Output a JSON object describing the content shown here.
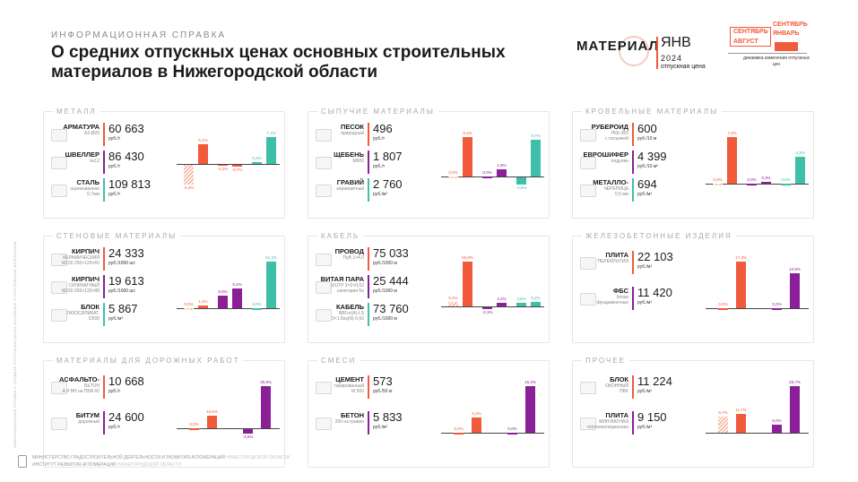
{
  "header": {
    "kicker": "ИНФОРМАЦИОННАЯ СПРАВКА",
    "title": "О средних отпускных ценах основных строительных материалов в Нижегородской области",
    "side_text": "ИНФОРМАЦИОННАЯ СПРАВКА О СРЕДНИХ ОТПУСКНЫХ ЦЕНАХ ОСНОВНЫХ СТРОИТЕЛЬНЫХ МАТЕРИАЛОВ"
  },
  "legend": {
    "material": "МАТЕРИАЛ",
    "month": "ЯНВ",
    "year": "2024",
    "price_caption": "отпускная цена",
    "sep_aug": "СЕНТЯБРЬ",
    "aug": "АВГУСТ",
    "sep_jan_1": "СЕНТЯБРЬ",
    "sep_jan_2": "ЯНВАРЬ",
    "dynamics_caption": "динамика изменения отпускных цен"
  },
  "colors": {
    "orange": "#f15a3a",
    "teal": "#3dbfa8",
    "purple": "#8b1f98",
    "hatch": "#f4b79f",
    "text": "#1a1a1a"
  },
  "cards": [
    {
      "title": "МЕТАЛЛ",
      "items": [
        {
          "name": "АРМАТУРА",
          "sub": "А3 Ø20",
          "sub2": "",
          "price": "60 663",
          "unit": "руб./т"
        },
        {
          "name": "ШВЕЛЛЕР",
          "sub": "№12",
          "sub2": "",
          "price": "86 430",
          "unit": "руб./т"
        },
        {
          "name": "СТАЛЬ",
          "sub": "оцинкованная",
          "sub2": "0,7мм",
          "price": "109 813",
          "unit": "руб./т"
        }
      ],
      "bars": [
        {
          "label": "-5,4%",
          "value": -5.4,
          "color": "hatch"
        },
        {
          "label": "5,1%",
          "value": 5.1,
          "color": "orange"
        },
        {
          "label": "-0,3%",
          "value": -0.3,
          "color": "orange"
        },
        {
          "label": "-0,7%",
          "value": -0.7,
          "color": "orange"
        },
        {
          "label": "0,2%",
          "value": 0.2,
          "color": "teal"
        },
        {
          "label": "7,1%",
          "value": 7.1,
          "color": "teal"
        }
      ]
    },
    {
      "title": "СЫПУЧИЕ МАТЕРИАЛЫ",
      "items": [
        {
          "name": "ПЕСОК",
          "sub": "природный",
          "sub2": "",
          "price": "496",
          "unit": "руб./т"
        },
        {
          "name": "ЩЕБЕНЬ",
          "sub": "М600",
          "sub2": "",
          "price": "1 807",
          "unit": "руб./т"
        },
        {
          "name": "ГРАВИЙ",
          "sub": "керамзитный",
          "sub2": "",
          "price": "2 760",
          "unit": "руб./м³"
        }
      ],
      "bars": [
        {
          "label": "0,0%",
          "value": 0.0,
          "color": "hatch"
        },
        {
          "label": "9,4%",
          "value": 9.4,
          "color": "orange"
        },
        {
          "label": "0,0%",
          "value": 0.0,
          "color": "purple"
        },
        {
          "label": "1,8%",
          "value": 1.8,
          "color": "purple"
        },
        {
          "label": "-1,6%",
          "value": -1.6,
          "color": "teal"
        },
        {
          "label": "8,7%",
          "value": 8.7,
          "color": "teal"
        }
      ]
    },
    {
      "title": "КРОВЕЛЬНЫЕ МАТЕРИАЛЫ",
      "items": [
        {
          "name": "РУБЕРОИД",
          "sub": "РКК-350",
          "sub2": "с посыпкой",
          "price": "600",
          "unit": "руб./10 м"
        },
        {
          "name": "ЕВРОШИФЕР",
          "sub": "ондулин",
          "sub2": "",
          "price": "4 399",
          "unit": "руб./10 м²"
        },
        {
          "name": "МЕТАЛЛО-",
          "sub": "ЧЕРЕПИЦА",
          "sub2": "0,5 мм",
          "price": "694",
          "unit": "руб./м²"
        }
      ],
      "bars": [
        {
          "label": "0,0%",
          "value": 0.0,
          "color": "hatch"
        },
        {
          "label": "7,5%",
          "value": 7.5,
          "color": "orange"
        },
        {
          "label": "0,0%",
          "value": 0.0,
          "color": "purple"
        },
        {
          "label": "0,3%",
          "value": 0.3,
          "color": "purple"
        },
        {
          "label": "0,0%",
          "value": 0.0,
          "color": "teal"
        },
        {
          "label": "4,3%",
          "value": 4.3,
          "color": "teal"
        }
      ]
    },
    {
      "title": "СТЕНОВЫЕ МАТЕРИАЛЫ",
      "items": [
        {
          "name": "КИРПИЧ",
          "sub": "КЕРАМИЧЕСКИЙ",
          "sub2": "М150 250×120×65",
          "price": "24 333",
          "unit": "руб./1000 шт."
        },
        {
          "name": "КИРПИЧ",
          "sub": "СИЛИКАТНЫЙ",
          "sub2": "М150 250×120×88",
          "price": "19 613",
          "unit": "руб./1000 шт."
        },
        {
          "name": "БЛОК",
          "sub": "ГАЗОСИЛИКАТ.",
          "sub2": "D500",
          "price": "5 867",
          "unit": "руб./м³"
        }
      ],
      "bars": [
        {
          "label": "0,0%",
          "value": 0.0,
          "color": "hatch"
        },
        {
          "label": "1,4%",
          "value": 1.4,
          "color": "orange"
        },
        {
          "label": "5,9%",
          "value": 5.9,
          "color": "purple"
        },
        {
          "label": "9,2%",
          "value": 9.2,
          "color": "purple"
        },
        {
          "label": "0,0%",
          "value": 0.0,
          "color": "teal"
        },
        {
          "label": "21,3%",
          "value": 21.3,
          "color": "teal"
        }
      ]
    },
    {
      "title": "КАБЕЛЬ",
      "items": [
        {
          "name": "ПРОВОД",
          "sub": "ПуВ 1×4,0",
          "sub2": "",
          "price": "75 033",
          "unit": "руб./1000 м"
        },
        {
          "name": "ВИТАЯ ПАРА",
          "sub": "U/UTP 2×2×0,52",
          "sub2": "категория 5е",
          "price": "25 444",
          "unit": "руб./1000 м"
        },
        {
          "name": "КАБЕЛЬ",
          "sub": "ВВГнг(А)-LS",
          "sub2": "3×1,5ок(N)-0,66",
          "price": "73 760",
          "unit": "руб./1000 м"
        }
      ],
      "bars": [
        {
          "label": "6,1%",
          "value": 6.1,
          "color": "hatch"
        },
        {
          "label": "55,8%",
          "value": 55.8,
          "color": "orange"
        },
        {
          "label": "-2,1%",
          "value": -2.1,
          "color": "purple"
        },
        {
          "label": "4,2%",
          "value": 4.2,
          "color": "purple"
        },
        {
          "label": "4,5%",
          "value": 4.5,
          "color": "teal"
        },
        {
          "label": "5,2%",
          "value": 5.2,
          "color": "teal"
        }
      ]
    },
    {
      "title": "ЖЕЛЕЗОБЕТОННЫЕ ИЗДЕЛИЯ",
      "items": [
        {
          "name": "ПЛИТА",
          "sub": "ПЕРЕКРЫТИЯ",
          "sub2": "",
          "price": "22 103",
          "unit": "руб./м³"
        },
        {
          "name": "ФБС",
          "sub": "блоки",
          "sub2": "фундаментные",
          "price": "11 420",
          "unit": "руб./м³"
        }
      ],
      "bars": [
        {
          "label": "0,0%",
          "value": 0.0,
          "color": "orange"
        },
        {
          "label": "17,3%",
          "value": 17.3,
          "color": "orange"
        },
        {
          "label": "0,0%",
          "value": 0.0,
          "color": "purple"
        },
        {
          "label": "12,9%",
          "value": 12.9,
          "color": "purple"
        }
      ]
    },
    {
      "title": "МАТЕРИАЛЫ ДЛЯ ДОРОЖНЫХ РАБОТ",
      "items": [
        {
          "name": "АСФАЛЬТО-",
          "sub": "БЕТОН",
          "sub2": "А II ВН на ПБВ 60",
          "price": "10 668",
          "unit": "руб./т"
        },
        {
          "name": "БИТУМ",
          "sub": "дорожный",
          "sub2": "",
          "price": "24 600",
          "unit": "руб./т"
        }
      ],
      "bars": [
        {
          "label": "0,0%",
          "value": 0.0,
          "color": "orange"
        },
        {
          "label": "10,6%",
          "value": 10.6,
          "color": "orange"
        },
        {
          "label": "-3,6%",
          "value": -3.6,
          "color": "purple"
        },
        {
          "label": "35,9%",
          "value": 35.9,
          "color": "purple"
        }
      ]
    },
    {
      "title": "СМЕСИ",
      "items": [
        {
          "name": "ЦЕМЕНТ",
          "sub": "тарированный",
          "sub2": "М 500",
          "price": "573",
          "unit": "руб./50 кг"
        },
        {
          "name": "БЕТОН",
          "sub": "200 на гравии",
          "sub2": "",
          "price": "5 833",
          "unit": "руб./м³"
        }
      ],
      "bars": [
        {
          "label": "0,0%",
          "value": 0.0,
          "color": "orange"
        },
        {
          "label": "5,2%",
          "value": 5.2,
          "color": "orange"
        },
        {
          "label": "0,0%",
          "value": 0.0,
          "color": "purple"
        },
        {
          "label": "16,3%",
          "value": 16.3,
          "color": "purple"
        }
      ]
    },
    {
      "title": "ПРОЧЕЕ",
      "items": [
        {
          "name": "БЛОК",
          "sub": "ОКОННЫЙ",
          "sub2": "ПВХ",
          "price": "11 224",
          "unit": "руб./м²"
        },
        {
          "name": "ПЛИТА",
          "sub": "МИН-ВАТНАЯ",
          "sub2": "теплоизоляционная",
          "price": "9 150",
          "unit": "руб./м³"
        }
      ],
      "bars": [
        {
          "label": "9,7%",
          "value": 9.7,
          "color": "hatch"
        },
        {
          "label": "11,7%",
          "value": 11.7,
          "color": "orange"
        },
        {
          "label": "5,0%",
          "value": 5.0,
          "color": "purple"
        },
        {
          "label": "28,7%",
          "value": 28.7,
          "color": "purple"
        }
      ]
    }
  ],
  "footer": {
    "line1": "МИНИСТЕРСТВО ГРАДОСТРОИТЕЛЬНОЙ ДЕЯТЕЛЬНОСТИ И РАЗВИТИЯ АГЛОМЕРАЦИЙ",
    "line1b": "НИЖЕГОРОДСКОЙ ОБЛАСТИ",
    "line2": "ИНСТИТУТ РАЗВИТИЯ АГЛОМЕРАЦИИ",
    "line2b": "НИЖЕГОРОДСКОЙ ОБЛАСТИ"
  }
}
